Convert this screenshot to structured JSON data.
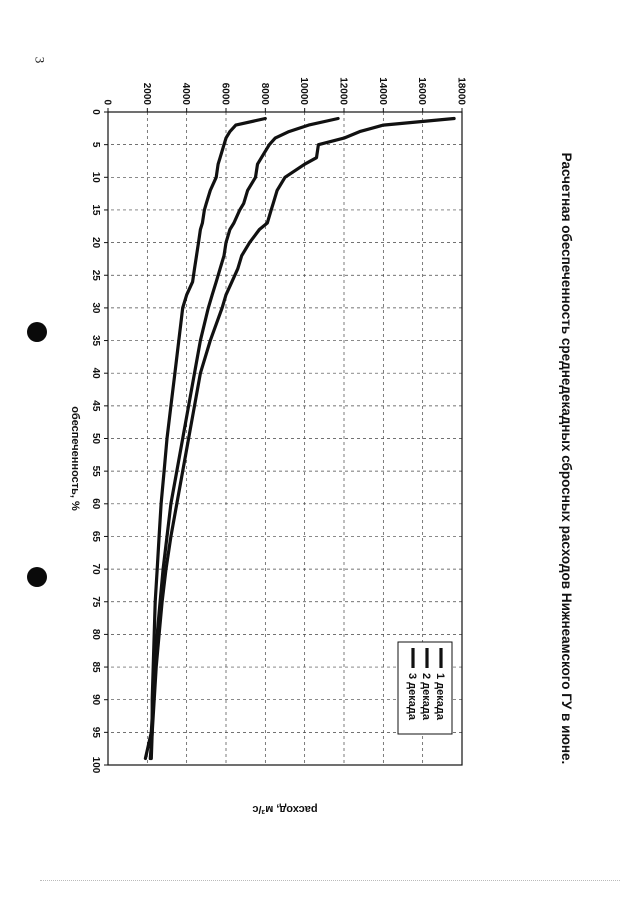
{
  "page": {
    "number": "3"
  },
  "chart_data": {
    "type": "line",
    "title": "Расчетная обеспеченность среднедекадных сбросных расходов Нижнеамского ГУ в июне.",
    "xlabel": "обеспеченность, %",
    "ylabel": "расход, м³/с",
    "xlim": [
      0,
      100
    ],
    "ylim": [
      0,
      18000
    ],
    "xticks": [
      "0",
      "5",
      "10",
      "15",
      "20",
      "25",
      "30",
      "35",
      "40",
      "45",
      "50",
      "55",
      "60",
      "65",
      "70",
      "75",
      "80",
      "85",
      "90",
      "95",
      "100"
    ],
    "yticks": [
      "0",
      "2000",
      "4000",
      "6000",
      "8000",
      "10000",
      "12000",
      "14000",
      "16000",
      "18000"
    ],
    "grid": true,
    "legend_position": "top-right",
    "series": [
      {
        "name": "1 декада",
        "x": [
          1,
          2,
          3,
          4,
          5,
          7,
          8,
          10,
          12,
          14,
          15,
          17,
          18,
          20,
          22,
          24,
          26,
          28,
          30,
          35,
          40,
          45,
          50,
          55,
          60,
          65,
          70,
          75,
          80,
          85,
          90,
          95,
          99
        ],
        "y": [
          17600,
          14000,
          12800,
          12000,
          10700,
          10600,
          10000,
          9000,
          8600,
          8400,
          8300,
          8100,
          7700,
          7200,
          6800,
          6600,
          6300,
          6000,
          5800,
          5200,
          4700,
          4400,
          4100,
          3800,
          3500,
          3200,
          2950,
          2750,
          2600,
          2450,
          2350,
          2250,
          2150
        ]
      },
      {
        "name": "2 декада",
        "x": [
          1,
          2,
          3,
          4,
          5,
          7,
          8,
          10,
          12,
          14,
          15,
          17,
          18,
          20,
          22,
          24,
          26,
          28,
          30,
          35,
          40,
          45,
          50,
          55,
          60,
          65,
          70,
          75,
          80,
          85,
          90,
          95,
          99
        ],
        "y": [
          11700,
          10200,
          9200,
          8500,
          8200,
          7800,
          7600,
          7500,
          7100,
          6900,
          6700,
          6400,
          6200,
          6000,
          5900,
          5700,
          5500,
          5300,
          5100,
          4700,
          4400,
          4100,
          3800,
          3500,
          3200,
          3000,
          2800,
          2650,
          2500,
          2400,
          2300,
          2200,
          1900
        ]
      },
      {
        "name": "3 декада",
        "x": [
          1,
          2,
          3,
          4,
          5,
          7,
          8,
          10,
          12,
          14,
          15,
          17,
          18,
          20,
          22,
          24,
          26,
          28,
          30,
          35,
          40,
          45,
          50,
          55,
          60,
          65,
          70,
          75,
          80,
          85,
          90,
          95,
          99
        ],
        "y": [
          8000,
          6500,
          6200,
          6000,
          5900,
          5700,
          5600,
          5500,
          5200,
          5000,
          4900,
          4800,
          4700,
          4600,
          4500,
          4400,
          4300,
          4000,
          3800,
          3600,
          3400,
          3200,
          3000,
          2850,
          2700,
          2600,
          2500,
          2400,
          2350,
          2300,
          2250,
          2250,
          2200
        ]
      }
    ]
  }
}
